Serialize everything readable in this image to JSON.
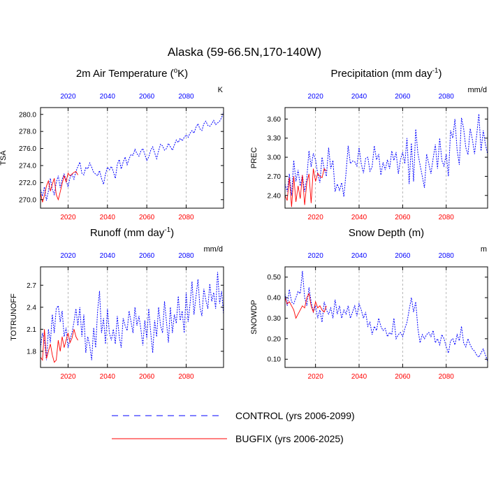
{
  "title": "Alaska (59-66.5N,170-140W)",
  "legend": {
    "control": "CONTROL (yrs 2006-2099)",
    "bugfix": "BUGFIX (yrs 2006-2025)"
  },
  "colors": {
    "control": "#0000ff",
    "bugfix": "#ff0000",
    "grid": "#a6a6a6"
  },
  "chart_data": [
    {
      "type": "line",
      "title": "2m Air Temperature (°K)",
      "title_parts": {
        "pre": "2m Air Temperature (",
        "sup": "o",
        "post": "K)"
      },
      "units": "K",
      "ylabel": "TSA",
      "xlim": [
        2006,
        2099
      ],
      "ylim": [
        269.0,
        280.8
      ],
      "yticks": [
        "270.0",
        "272.0",
        "274.0",
        "276.0",
        "278.0",
        "280.0"
      ],
      "xticks": [
        "2020",
        "2040",
        "2060",
        "2080"
      ],
      "series": [
        {
          "name": "CONTROL",
          "start_year": 2006,
          "values": [
            271.2,
            270.4,
            271.5,
            269.9,
            271.0,
            272.5,
            271.2,
            270.6,
            272.0,
            272.8,
            271.4,
            272.4,
            273.0,
            272.3,
            271.5,
            272.6,
            273.0,
            272.4,
            273.3,
            273.9,
            274.4,
            273.1,
            272.9,
            273.8,
            273.6,
            274.3,
            273.8,
            273.2,
            273.0,
            272.8,
            273.4,
            272.5,
            271.8,
            273.0,
            273.8,
            273.5,
            273.9,
            273.3,
            272.5,
            274.1,
            274.7,
            273.6,
            274.4,
            275.0,
            274.1,
            274.8,
            275.3,
            275.2,
            275.9,
            275.4,
            275.1,
            275.7,
            276.0,
            275.3,
            274.6,
            275.0,
            275.8,
            276.2,
            275.5,
            274.8,
            275.7,
            276.5,
            276.3,
            275.8,
            276.0,
            276.6,
            276.2,
            275.8,
            276.4,
            277.0,
            276.7,
            277.2,
            276.9,
            277.3,
            277.6,
            277.3,
            277.8,
            278.1,
            277.8,
            278.5,
            278.9,
            278.3,
            278.1,
            278.9,
            279.2,
            278.7,
            278.6,
            278.9,
            279.3,
            278.8,
            279.0,
            279.2,
            279.6,
            280.3
          ]
        },
        {
          "name": "BUGFIX",
          "start_year": 2006,
          "values": [
            270.8,
            269.7,
            270.5,
            271.6,
            272.2,
            271.0,
            271.8,
            272.5,
            270.6,
            270.0,
            270.9,
            271.9,
            272.8,
            272.1,
            273.1,
            272.8,
            273.0,
            273.2,
            273.3,
            272.9
          ]
        }
      ]
    },
    {
      "type": "line",
      "title": "Precipitation (mm day-1)",
      "title_parts": {
        "pre": "Precipitation (mm day",
        "sup": "-1",
        "post": ")"
      },
      "units": "mm/d",
      "ylabel": "PREC",
      "xlim": [
        2006,
        2099
      ],
      "ylim": [
        2.2,
        3.78
      ],
      "yticks": [
        "2.40",
        "2.70",
        "3.00",
        "3.30",
        "3.60"
      ],
      "xticks": [
        "2020",
        "2040",
        "2060",
        "2080"
      ],
      "series": [
        {
          "name": "CONTROL",
          "start_year": 2006,
          "values": [
            2.58,
            2.46,
            2.74,
            2.4,
            2.95,
            2.62,
            2.8,
            2.55,
            2.72,
            2.46,
            2.68,
            3.1,
            2.85,
            3.06,
            2.96,
            2.74,
            2.6,
            3.0,
            2.82,
            2.7,
            3.15,
            2.82,
            2.95,
            2.46,
            2.58,
            2.48,
            2.6,
            2.38,
            2.75,
            3.18,
            2.9,
            2.94,
            2.93,
            2.86,
            3.15,
            2.9,
            2.75,
            2.98,
            3.0,
            2.78,
            2.85,
            3.18,
            2.96,
            3.05,
            2.72,
            2.92,
            2.8,
            2.96,
            2.82,
            3.1,
            2.95,
            3.08,
            2.74,
            2.96,
            3.08,
            2.9,
            3.3,
            2.58,
            3.22,
            2.62,
            3.44,
            3.06,
            2.88,
            2.7,
            2.52,
            3.05,
            2.9,
            2.74,
            2.98,
            3.2,
            2.82,
            3.3,
            2.95,
            2.86,
            3.05,
            2.7,
            3.42,
            3.3,
            3.6,
            3.12,
            2.88,
            3.62,
            3.45,
            3.15,
            3.04,
            3.45,
            3.28,
            3.05,
            3.35,
            3.68,
            3.1,
            3.42,
            3.2,
            3.05
          ]
        },
        {
          "name": "BUGFIX",
          "start_year": 2006,
          "values": [
            2.4,
            2.32,
            2.68,
            2.22,
            2.7,
            2.3,
            2.55,
            2.35,
            2.72,
            2.25,
            2.6,
            2.74,
            2.28,
            2.82,
            2.62,
            2.75,
            2.7,
            2.68,
            2.82,
            2.78
          ]
        }
      ]
    },
    {
      "type": "line",
      "title": "Runoff (mm day-1)",
      "title_parts": {
        "pre": "Runoff (mm day",
        "sup": "-1",
        "post": ")"
      },
      "units": "mm/d",
      "ylabel": "TOTRUNOFF",
      "xlim": [
        2006,
        2099
      ],
      "ylim": [
        1.58,
        2.95
      ],
      "yticks": [
        "1.8",
        "2.1",
        "2.4",
        "2.7"
      ],
      "xticks": [
        "2020",
        "2040",
        "2060",
        "2080"
      ],
      "series": [
        {
          "name": "CONTROL",
          "start_year": 2006,
          "values": [
            1.85,
            2.05,
            1.95,
            1.68,
            2.1,
            1.92,
            2.3,
            2.05,
            2.38,
            2.42,
            2.2,
            2.35,
            2.0,
            2.12,
            1.85,
            1.96,
            2.05,
            2.2,
            2.38,
            2.15,
            2.4,
            2.0,
            2.3,
            1.78,
            2.0,
            1.88,
            1.68,
            2.12,
            1.85,
            2.35,
            2.62,
            2.05,
            2.25,
            1.9,
            2.38,
            2.05,
            1.95,
            2.1,
            1.9,
            2.28,
            2.0,
            1.85,
            2.25,
            2.15,
            2.08,
            2.35,
            2.2,
            2.05,
            2.4,
            2.15,
            2.28,
            2.1,
            1.88,
            2.22,
            1.98,
            2.38,
            2.05,
            1.78,
            2.22,
            2.0,
            2.4,
            2.15,
            2.05,
            2.48,
            2.2,
            1.92,
            2.4,
            2.05,
            2.3,
            2.18,
            2.55,
            2.22,
            2.35,
            2.05,
            2.6,
            2.2,
            2.45,
            2.75,
            2.3,
            2.55,
            2.78,
            2.4,
            2.28,
            2.65,
            2.5,
            2.38,
            2.72,
            2.48,
            2.6,
            2.38,
            2.88,
            2.45,
            2.62,
            2.3
          ]
        },
        {
          "name": "BUGFIX",
          "start_year": 2006,
          "values": [
            1.72,
            1.68,
            2.1,
            1.7,
            1.8,
            1.9,
            1.75,
            1.65,
            1.68,
            1.95,
            1.8,
            2.0,
            1.85,
            1.95,
            2.05,
            1.92,
            1.98,
            2.1,
            2.0,
            1.95
          ]
        }
      ]
    },
    {
      "type": "line",
      "title": "Snow Depth (m)",
      "title_parts": {
        "pre": "Snow Depth (m)",
        "sup": "",
        "post": ""
      },
      "units": "m",
      "ylabel": "SNOWDP",
      "xlim": [
        2006,
        2099
      ],
      "ylim": [
        0.06,
        0.55
      ],
      "yticks": [
        "0.10",
        "0.20",
        "0.30",
        "0.40",
        "0.50"
      ],
      "xticks": [
        "2020",
        "2040",
        "2060",
        "2080"
      ],
      "series": [
        {
          "name": "CONTROL",
          "start_year": 2006,
          "values": [
            0.42,
            0.36,
            0.44,
            0.38,
            0.37,
            0.4,
            0.43,
            0.42,
            0.53,
            0.4,
            0.36,
            0.45,
            0.38,
            0.33,
            0.36,
            0.3,
            0.34,
            0.28,
            0.38,
            0.34,
            0.32,
            0.35,
            0.3,
            0.39,
            0.32,
            0.36,
            0.3,
            0.34,
            0.32,
            0.36,
            0.3,
            0.33,
            0.36,
            0.31,
            0.37,
            0.34,
            0.3,
            0.33,
            0.26,
            0.28,
            0.22,
            0.26,
            0.24,
            0.3,
            0.26,
            0.24,
            0.25,
            0.21,
            0.23,
            0.22,
            0.3,
            0.2,
            0.22,
            0.23,
            0.21,
            0.25,
            0.28,
            0.34,
            0.4,
            0.33,
            0.38,
            0.25,
            0.18,
            0.22,
            0.2,
            0.22,
            0.23,
            0.21,
            0.24,
            0.18,
            0.2,
            0.17,
            0.22,
            0.2,
            0.16,
            0.13,
            0.19,
            0.2,
            0.17,
            0.22,
            0.19,
            0.26,
            0.18,
            0.16,
            0.2,
            0.17,
            0.15,
            0.14,
            0.12,
            0.11,
            0.13,
            0.15,
            0.12,
            0.09
          ]
        },
        {
          "name": "BUGFIX",
          "start_year": 2006,
          "values": [
            0.4,
            0.37,
            0.38,
            0.36,
            0.34,
            0.3,
            0.32,
            0.34,
            0.36,
            0.35,
            0.4,
            0.42,
            0.36,
            0.33,
            0.38,
            0.35,
            0.36,
            0.34,
            0.33,
            0.36
          ]
        }
      ]
    }
  ]
}
